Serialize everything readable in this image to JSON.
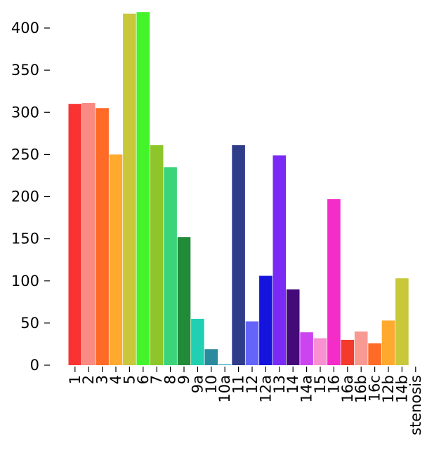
{
  "chart_data": {
    "type": "bar",
    "title": "",
    "xlabel": "",
    "ylabel": "",
    "categories": [
      "1",
      "2",
      "3",
      "4",
      "5",
      "6",
      "7",
      "8",
      "9",
      "9a",
      "10",
      "10a",
      "11",
      "12",
      "12a",
      "13",
      "14",
      "14a",
      "15",
      "16",
      "16a",
      "16b",
      "16c",
      "12b",
      "14b",
      "stenosis"
    ],
    "values": [
      310,
      311,
      305,
      250,
      417,
      419,
      261,
      235,
      152,
      55,
      19,
      1,
      261,
      52,
      106,
      249,
      90,
      39,
      32,
      197,
      30,
      40,
      26,
      53,
      103,
      0
    ],
    "colors": [
      "#f93232",
      "#f98b82",
      "#ff6a26",
      "#ffaa2e",
      "#c8c83a",
      "#44f42a",
      "#8ec62a",
      "#3bd47a",
      "#228b3a",
      "#21d0b2",
      "#2a8a9e",
      "#2aa0b0",
      "#2e3c8a",
      "#6464f8",
      "#1414dc",
      "#7a2af4",
      "#440a78",
      "#cc44f0",
      "#f890d2",
      "#f42cc8",
      "#f43a2a",
      "#f89a92",
      "#ff6a26",
      "#ffaa2e",
      "#c8c83a",
      "#44f42a"
    ],
    "yticks": [
      0,
      50,
      100,
      150,
      200,
      250,
      300,
      350,
      400
    ],
    "ylim": [
      0,
      420
    ],
    "grid": false,
    "legend": "none"
  }
}
